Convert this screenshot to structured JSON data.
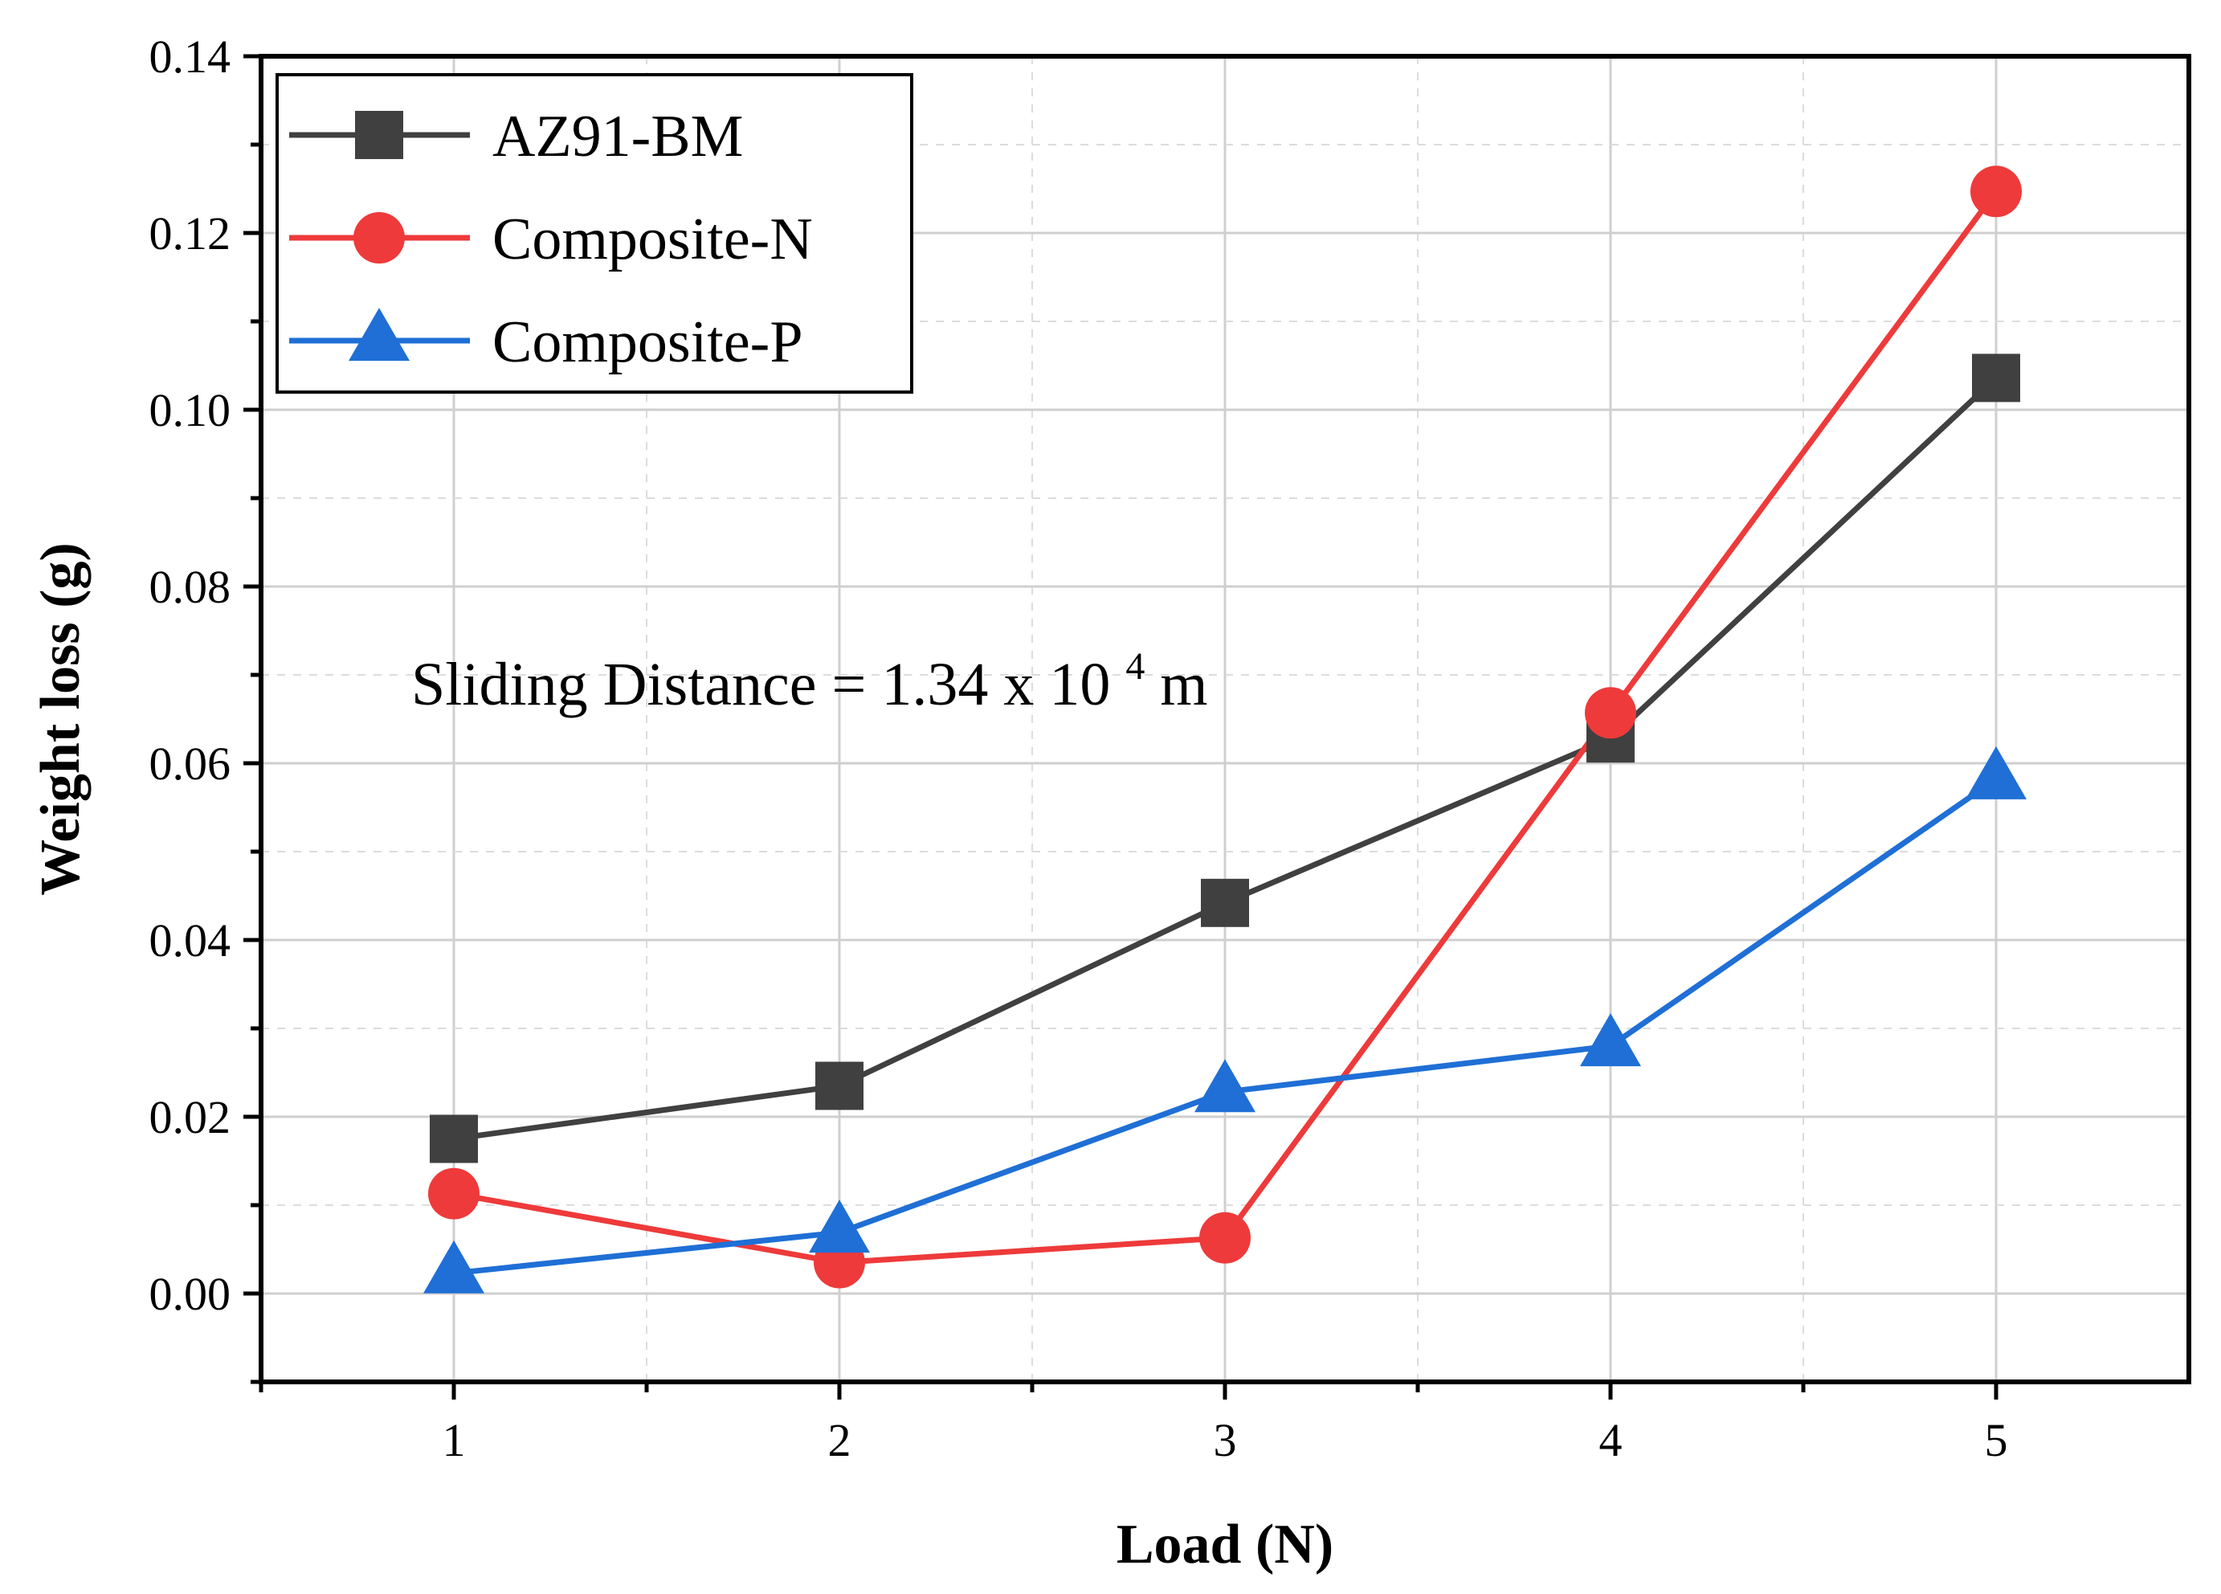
{
  "chart_data": {
    "type": "line",
    "title": "",
    "xlabel": "Load (N)",
    "ylabel": "Weight loss (g)",
    "x": [
      1,
      2,
      3,
      4,
      5
    ],
    "xlim": [
      0.5,
      5.5
    ],
    "ylim": [
      -0.01,
      0.14
    ],
    "xticks": [
      "1",
      "2",
      "3",
      "4",
      "5"
    ],
    "xtick_values": [
      1,
      2,
      3,
      4,
      5
    ],
    "yticks": [
      "0.00",
      "0.02",
      "0.04",
      "0.06",
      "0.08",
      "0.10",
      "0.12",
      "0.14"
    ],
    "ytick_values": [
      0,
      0.02,
      0.04,
      0.06,
      0.08,
      0.1,
      0.12,
      0.14
    ],
    "grid": true,
    "legend_position": "top-left",
    "series": [
      {
        "name": "AZ91-BM",
        "marker": "square",
        "color": "#404040",
        "values": [
          0.0175,
          0.0235,
          0.0442,
          0.0628,
          0.1036
        ]
      },
      {
        "name": "Composite-N",
        "marker": "circle",
        "color": "#ee3a3a",
        "values": [
          0.0113,
          0.0035,
          0.0063,
          0.0657,
          0.1247
        ]
      },
      {
        "name": "Composite-P",
        "marker": "triangle",
        "color": "#1f6fd6",
        "values": [
          0.0023,
          0.0069,
          0.0228,
          0.028,
          0.0582
        ]
      }
    ],
    "annotation": {
      "prefix": "Sliding Distance = 1.34 x 10",
      "superscript": "4",
      "suffix": " m"
    }
  }
}
